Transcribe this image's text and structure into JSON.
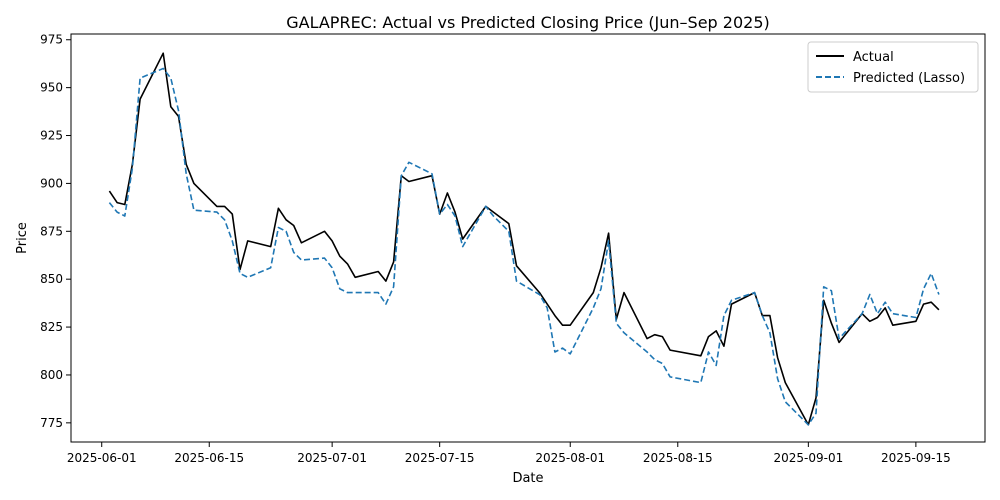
{
  "chart_data": {
    "type": "line",
    "title": "GALAPREC: Actual vs Predicted Closing Price (Jun–Sep 2025)",
    "xlabel": "Date",
    "ylabel": "Price",
    "xlim": [
      "2025-05-28",
      "2025-09-24"
    ],
    "ylim": [
      765,
      978
    ],
    "x_ticks": [
      "2025-06-01",
      "2025-06-15",
      "2025-07-01",
      "2025-07-15",
      "2025-08-01",
      "2025-08-15",
      "2025-09-01",
      "2025-09-15"
    ],
    "y_ticks": [
      775,
      800,
      825,
      850,
      875,
      900,
      925,
      950,
      975
    ],
    "grid": false,
    "legend_position": "top-right",
    "series": [
      {
        "name": "Actual",
        "color": "#000000",
        "style": "solid",
        "x": [
          "2025-06-02",
          "2025-06-03",
          "2025-06-04",
          "2025-06-05",
          "2025-06-06",
          "2025-06-09",
          "2025-06-10",
          "2025-06-11",
          "2025-06-12",
          "2025-06-13",
          "2025-06-16",
          "2025-06-17",
          "2025-06-18",
          "2025-06-19",
          "2025-06-20",
          "2025-06-23",
          "2025-06-24",
          "2025-06-25",
          "2025-06-26",
          "2025-06-27",
          "2025-06-30",
          "2025-07-01",
          "2025-07-02",
          "2025-07-03",
          "2025-07-04",
          "2025-07-07",
          "2025-07-08",
          "2025-07-09",
          "2025-07-10",
          "2025-07-11",
          "2025-07-14",
          "2025-07-15",
          "2025-07-16",
          "2025-07-17",
          "2025-07-18",
          "2025-07-21",
          "2025-07-22",
          "2025-07-23",
          "2025-07-24",
          "2025-07-25",
          "2025-07-28",
          "2025-07-29",
          "2025-07-30",
          "2025-07-31",
          "2025-08-01",
          "2025-08-04",
          "2025-08-05",
          "2025-08-06",
          "2025-08-07",
          "2025-08-08",
          "2025-08-11",
          "2025-08-12",
          "2025-08-13",
          "2025-08-14",
          "2025-08-18",
          "2025-08-19",
          "2025-08-20",
          "2025-08-21",
          "2025-08-22",
          "2025-08-25",
          "2025-08-26",
          "2025-08-27",
          "2025-08-28",
          "2025-08-29",
          "2025-09-01",
          "2025-09-02",
          "2025-09-03",
          "2025-09-04",
          "2025-09-05",
          "2025-09-08",
          "2025-09-09",
          "2025-09-10",
          "2025-09-11",
          "2025-09-12",
          "2025-09-15",
          "2025-09-16",
          "2025-09-17",
          "2025-09-18"
        ],
        "values": [
          896,
          890,
          889,
          910,
          944,
          968,
          940,
          935,
          910,
          900,
          888,
          888,
          884,
          855,
          870,
          867,
          887,
          881,
          878,
          869,
          875,
          870,
          862,
          858,
          851,
          854,
          849,
          859,
          904,
          901,
          904,
          884,
          895,
          885,
          871,
          888,
          885,
          882,
          879,
          857,
          843,
          837,
          831,
          826,
          826,
          843,
          856,
          874,
          829,
          843,
          819,
          821,
          820,
          813,
          810,
          820,
          823,
          815,
          837,
          843,
          831,
          831,
          809,
          796,
          774,
          788,
          839,
          827,
          817,
          832,
          828,
          830,
          835,
          826,
          828,
          837,
          838,
          834
        ]
      },
      {
        "name": "Predicted (Lasso)",
        "color": "#1f77b4",
        "style": "dashed",
        "x": [
          "2025-06-02",
          "2025-06-03",
          "2025-06-04",
          "2025-06-05",
          "2025-06-06",
          "2025-06-09",
          "2025-06-10",
          "2025-06-11",
          "2025-06-12",
          "2025-06-13",
          "2025-06-16",
          "2025-06-17",
          "2025-06-18",
          "2025-06-19",
          "2025-06-20",
          "2025-06-23",
          "2025-06-24",
          "2025-06-25",
          "2025-06-26",
          "2025-06-27",
          "2025-06-30",
          "2025-07-01",
          "2025-07-02",
          "2025-07-03",
          "2025-07-04",
          "2025-07-07",
          "2025-07-08",
          "2025-07-09",
          "2025-07-10",
          "2025-07-11",
          "2025-07-14",
          "2025-07-15",
          "2025-07-16",
          "2025-07-17",
          "2025-07-18",
          "2025-07-21",
          "2025-07-22",
          "2025-07-23",
          "2025-07-24",
          "2025-07-25",
          "2025-07-28",
          "2025-07-29",
          "2025-07-30",
          "2025-07-31",
          "2025-08-01",
          "2025-08-04",
          "2025-08-05",
          "2025-08-06",
          "2025-08-07",
          "2025-08-08",
          "2025-08-11",
          "2025-08-12",
          "2025-08-13",
          "2025-08-14",
          "2025-08-18",
          "2025-08-19",
          "2025-08-20",
          "2025-08-21",
          "2025-08-22",
          "2025-08-25",
          "2025-08-26",
          "2025-08-27",
          "2025-08-28",
          "2025-08-29",
          "2025-09-01",
          "2025-09-02",
          "2025-09-03",
          "2025-09-04",
          "2025-09-05",
          "2025-09-08",
          "2025-09-09",
          "2025-09-10",
          "2025-09-11",
          "2025-09-12",
          "2025-09-15",
          "2025-09-16",
          "2025-09-17",
          "2025-09-18"
        ],
        "values": [
          890,
          885,
          883,
          908,
          955,
          960,
          955,
          938,
          905,
          886,
          885,
          881,
          870,
          853,
          851,
          856,
          877,
          875,
          864,
          860,
          861,
          856,
          845,
          843,
          843,
          843,
          837,
          846,
          904,
          911,
          905,
          884,
          889,
          883,
          867,
          888,
          883,
          879,
          875,
          849,
          842,
          835,
          812,
          814,
          811,
          835,
          845,
          870,
          827,
          822,
          812,
          808,
          806,
          799,
          796,
          812,
          805,
          831,
          839,
          843,
          831,
          822,
          798,
          786,
          774,
          780,
          846,
          844,
          819,
          832,
          842,
          832,
          838,
          832,
          830,
          845,
          853,
          842
        ]
      }
    ]
  }
}
